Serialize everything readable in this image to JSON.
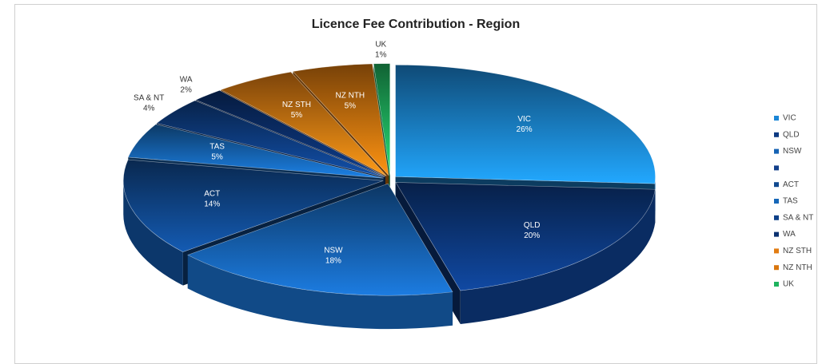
{
  "chart_data": {
    "type": "pie",
    "title": "Licence Fee Contribution - Region",
    "categories": [
      "VIC",
      "QLD",
      "NSW",
      null,
      "ACT",
      "TAS",
      "SA & NT",
      "WA",
      "NZ STH",
      "NZ NTH",
      "UK"
    ],
    "values": [
      26,
      20,
      18,
      0,
      14,
      5,
      4,
      2,
      5,
      5,
      1
    ],
    "value_labels": [
      "26%",
      "20%",
      "18%",
      null,
      "14%",
      "5%",
      "4%",
      "2%",
      "5%",
      "5%",
      "1%"
    ],
    "colors": [
      "#1b86d6",
      "#0d3a82",
      "#1663b4",
      "#123f8a",
      "#10498f",
      "#1667b8",
      "#0e4088",
      "#0b3170",
      "#e27c12",
      "#d9760e",
      "#1fb35e"
    ],
    "legend": "right"
  }
}
